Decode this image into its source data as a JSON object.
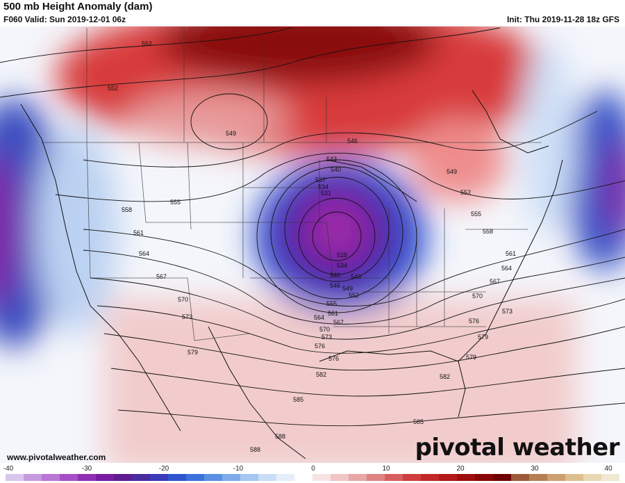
{
  "header": {
    "title": "500 mb Height Anomaly (dam)",
    "valid": "F060 Valid: Sun 2019-12-01 06z",
    "init": "Init: Thu 2019-11-28 18z GFS"
  },
  "contour_labels": [
    "552",
    "552",
    "549",
    "546",
    "543",
    "540",
    "537",
    "534",
    "531",
    "549",
    "552",
    "555",
    "558",
    "555",
    "558",
    "561",
    "564",
    "567",
    "570",
    "573",
    "576",
    "579",
    "528",
    "534",
    "540",
    "543",
    "546",
    "549",
    "552",
    "555",
    "561",
    "564",
    "567",
    "570",
    "573",
    "576",
    "579",
    "561",
    "564",
    "567",
    "570",
    "573",
    "576",
    "579",
    "582",
    "582",
    "585",
    "585",
    "588",
    "588"
  ],
  "colorbar": {
    "ticks": [
      "-40",
      "-30",
      "-20",
      "-10",
      "0",
      "10",
      "20",
      "30",
      "40"
    ],
    "colors": [
      "#d9c6ee",
      "#c79ae0",
      "#b977d6",
      "#a64fc7",
      "#8f2fb3",
      "#7a1ca3",
      "#5e1c8f",
      "#4a2ba0",
      "#3a3cb8",
      "#2f56cf",
      "#3a73db",
      "#5a90e2",
      "#7eacea",
      "#a5c7f1",
      "#c9ddf6",
      "#e6eff9",
      "#ffffff",
      "#f8e3e3",
      "#f0c6c6",
      "#e8a6a6",
      "#e08383",
      "#d85f5f",
      "#cf3f3f",
      "#c42727",
      "#b41818",
      "#9e0e0e",
      "#880707",
      "#6f0303",
      "#9d5a3a",
      "#b78052",
      "#cda06e",
      "#ddbf8f",
      "#e9d8b4",
      "#f1e8d4"
    ]
  },
  "footer": {
    "url": "www.pivotalweather.com",
    "brand": "pivotal weather"
  }
}
